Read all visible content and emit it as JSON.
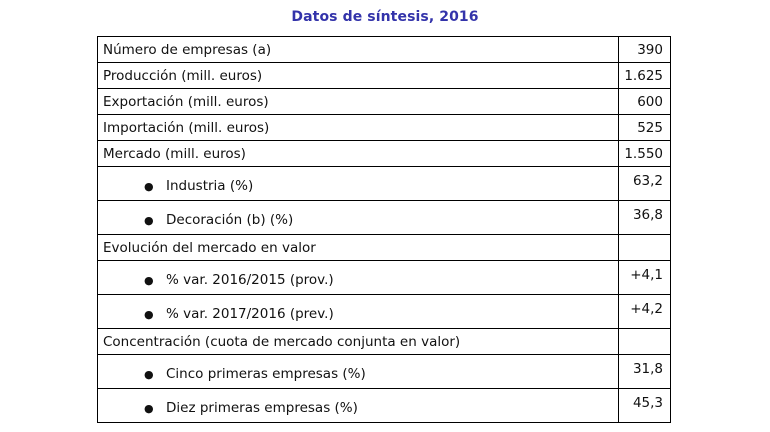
{
  "title": "Datos de síntesis, 2016",
  "bullet_glyph": "●",
  "rows": [
    {
      "label": "Número de empresas (a)",
      "value": "390"
    },
    {
      "label": "Producción (mill. euros)",
      "value": "1.625"
    },
    {
      "label": "Exportación (mill. euros)",
      "value": "600"
    },
    {
      "label": "Importación (mill. euros)",
      "value": "525"
    },
    {
      "label": "Mercado (mill. euros)",
      "value": "1.550"
    },
    {
      "label": "Industria (%)",
      "value": "63,2"
    },
    {
      "label": "Decoración (b) (%)",
      "value": "36,8"
    },
    {
      "label": "Evolución del mercado en valor",
      "value": ""
    },
    {
      "label": "% var. 2016/2015 (prov.)",
      "value": "+4,1"
    },
    {
      "label": "% var. 2017/2016 (prev.)",
      "value": "+4,2"
    },
    {
      "label": "Concentración (cuota de mercado conjunta en valor)",
      "value": ""
    },
    {
      "label": "Cinco primeras empresas (%)",
      "value": "31,8"
    },
    {
      "label": "Diez primeras empresas (%)",
      "value": "45,3"
    }
  ]
}
